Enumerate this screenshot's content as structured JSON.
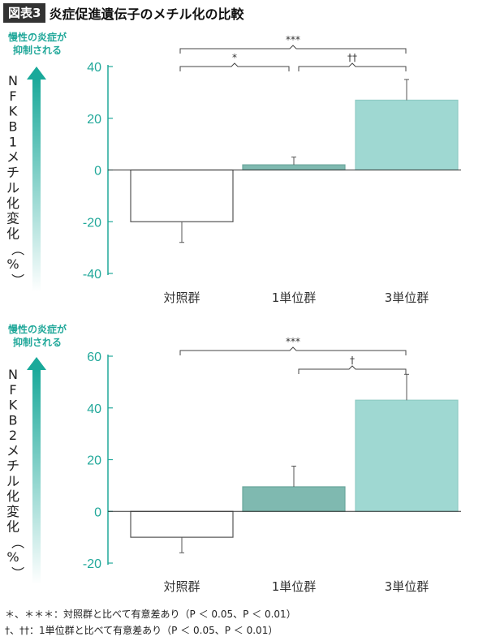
{
  "header": {
    "label": "図表3",
    "title": "炎症促進遺伝子のメチル化の比較"
  },
  "arrow_label": [
    "慢性の炎症が",
    "抑制される"
  ],
  "colors": {
    "accent": "#21a89a",
    "bar_control": "#ffffff",
    "bar_1unit": "#7fb9b0",
    "bar_3unit": "#9fd8d2",
    "axis": "#21a89a"
  },
  "footnotes": [
    "＊、＊＊＊：対照群と比べて有意差あり（P ＜ 0.05、P ＜ 0.01）",
    "†、††：1単位群と比べて有意差あり（P ＜ 0.05、P ＜ 0.01）"
  ],
  "chart_data": [
    {
      "type": "bar",
      "title": "",
      "ylabel": "NFKB1メチル化変化（%）",
      "categories": [
        "対照群",
        "1単位群",
        "3単位群"
      ],
      "values": [
        -20,
        2,
        27
      ],
      "error": [
        8,
        3,
        8
      ],
      "ylim": [
        -40,
        40
      ],
      "yticks": [
        40,
        20,
        0,
        -20,
        -40
      ],
      "significance": [
        {
          "from": 0,
          "to": 1,
          "label": "*"
        },
        {
          "from": 1,
          "to": 2,
          "label": "††"
        },
        {
          "from": 0,
          "to": 2,
          "label": "***"
        }
      ]
    },
    {
      "type": "bar",
      "title": "",
      "ylabel": "NFKB2メチル化変化（%）",
      "categories": [
        "対照群",
        "1単位群",
        "3単位群"
      ],
      "values": [
        -10,
        9.5,
        43
      ],
      "error": [
        6,
        8,
        10
      ],
      "ylim": [
        -20,
        60
      ],
      "yticks": [
        60,
        40,
        20,
        0,
        -20
      ],
      "significance": [
        {
          "from": 1,
          "to": 2,
          "label": "†"
        },
        {
          "from": 0,
          "to": 2,
          "label": "***"
        }
      ]
    }
  ]
}
